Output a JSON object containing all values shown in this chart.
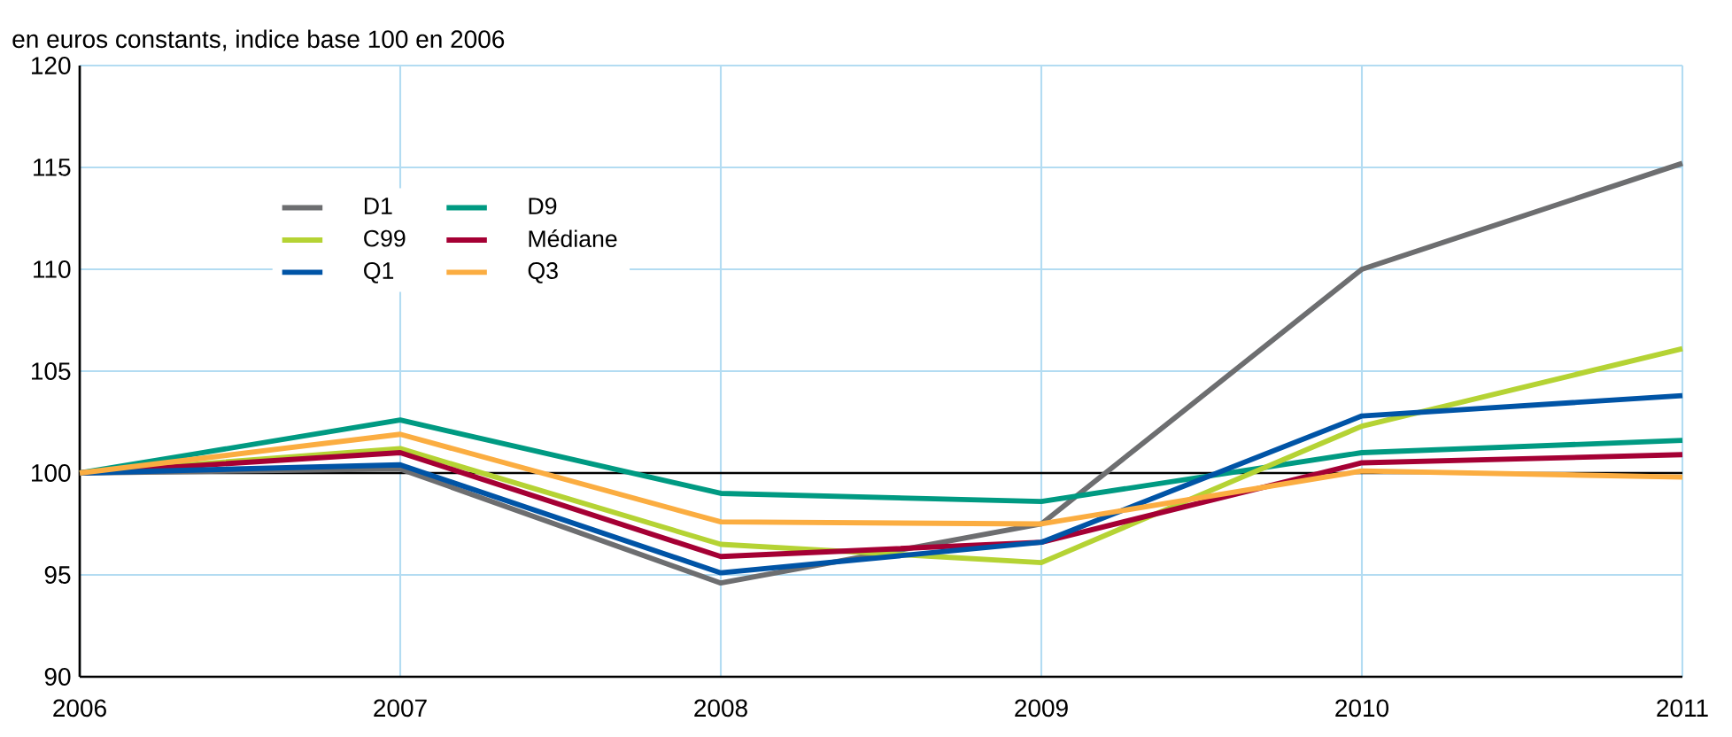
{
  "chart_data": {
    "type": "line",
    "ylabel": "en euros constants, indice base 100 en 2006",
    "x": [
      2006,
      2007,
      2008,
      2009,
      2010,
      2011
    ],
    "xlim": [
      2006,
      2011
    ],
    "xticks": [
      2006,
      2007,
      2008,
      2009,
      2010,
      2011
    ],
    "ylim": [
      90,
      120
    ],
    "yticks": [
      90,
      95,
      100,
      105,
      110,
      115,
      120
    ],
    "grid": true,
    "legend": "top left",
    "marker": "none",
    "line_style": "solid",
    "ref_lines": [
      {
        "axis": "y",
        "value": 100,
        "color": "#000000"
      }
    ],
    "series": [
      {
        "name": "D1",
        "color": "#6d6e70",
        "values": [
          100,
          100.2,
          94.6,
          97.5,
          110,
          115.2
        ]
      },
      {
        "name": "D9",
        "color": "#009a82",
        "values": [
          100,
          102.6,
          99.0,
          98.6,
          101.0,
          101.6
        ]
      },
      {
        "name": "C99",
        "color": "#b5d334",
        "values": [
          100,
          101.2,
          96.5,
          95.6,
          102.3,
          106.1
        ]
      },
      {
        "name": "Médiane",
        "color": "#a50034",
        "values": [
          100,
          101.0,
          95.9,
          96.6,
          100.5,
          100.9
        ]
      },
      {
        "name": "Q1",
        "color": "#0054a6",
        "values": [
          100,
          100.4,
          95.1,
          96.6,
          102.8,
          103.8
        ]
      },
      {
        "name": "Q3",
        "color": "#fbad41",
        "values": [
          100,
          101.9,
          97.6,
          97.5,
          100.1,
          99.8
        ]
      }
    ]
  }
}
